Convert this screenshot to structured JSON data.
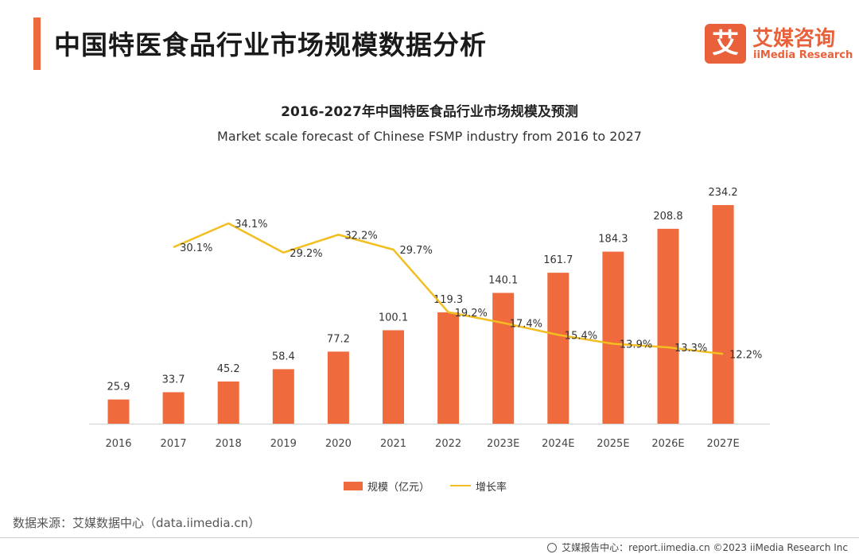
{
  "header": {
    "title": "中国特医食品行业市场规模数据分析",
    "logo_mark": "艾",
    "logo_cn": "艾媒咨询",
    "logo_en": "iiMedia Research"
  },
  "chart_data": {
    "type": "bar",
    "title": "2016-2027年中国特医食品行业市场规模及预测",
    "subtitle": "Market scale forecast of Chinese FSMP industry from 2016 to 2027",
    "categories": [
      "2016",
      "2017",
      "2018",
      "2019",
      "2020",
      "2021",
      "2022",
      "2023E",
      "2024E",
      "2025E",
      "2026E",
      "2027E"
    ],
    "series": [
      {
        "name": "规模（亿元）",
        "kind": "bar",
        "color": "#ef6a3d",
        "values": [
          25.9,
          33.7,
          45.2,
          58.4,
          77.2,
          100.1,
          119.3,
          140.1,
          161.7,
          184.3,
          208.8,
          234.2
        ],
        "labels": [
          "25.9",
          "33.7",
          "45.2",
          "58.4",
          "77.2",
          "100.1",
          "119.3",
          "140.1",
          "161.7",
          "184.3",
          "208.8",
          "234.2"
        ]
      },
      {
        "name": "增长率",
        "kind": "line",
        "color": "#f2be22",
        "values": [
          null,
          30.1,
          34.1,
          29.2,
          32.2,
          29.7,
          19.2,
          17.4,
          15.4,
          13.9,
          13.3,
          12.2
        ],
        "labels": [
          null,
          "30.1%",
          "34.1%",
          "29.2%",
          "32.2%",
          "29.7%",
          "19.2%",
          "17.4%",
          "15.4%",
          "13.9%",
          "13.3%",
          "12.2%"
        ]
      }
    ],
    "grid": false,
    "legend_position": "bottom"
  },
  "source": "数据来源：艾媒数据中心（data.iimedia.cn）",
  "footer": "艾媒报告中心：report.iimedia.cn   ©2023  iiMedia Research  Inc"
}
